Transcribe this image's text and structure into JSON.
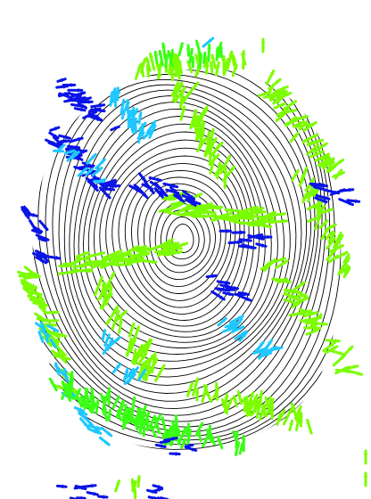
{
  "colors": {
    "background": "#ffffff",
    "ridges": "#000000",
    "marker_light_green": "#7cfc00",
    "marker_green": "#39ff14",
    "marker_cyan": "#1ec8ff",
    "marker_blue": "#0a14e6"
  },
  "icon": "fingerprint-ridge-plot-with-orientation-arrows"
}
